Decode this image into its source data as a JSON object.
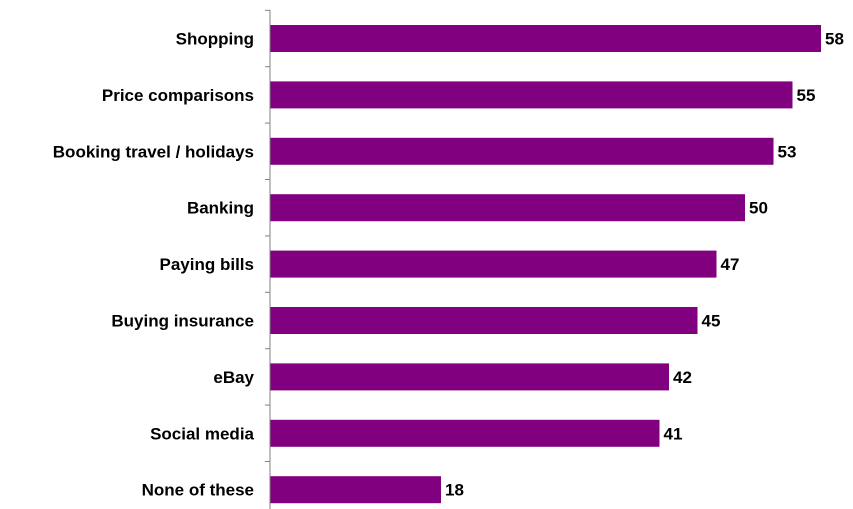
{
  "chart_data": {
    "type": "bar",
    "orientation": "horizontal",
    "title": "",
    "xlabel": "",
    "ylabel": "",
    "categories": [
      "Shopping",
      "Price comparisons",
      "Booking travel / holidays",
      "Banking",
      "Paying bills",
      "Buying insurance",
      "eBay",
      "Social media",
      "None of these"
    ],
    "values": [
      58,
      55,
      53,
      50,
      47,
      45,
      42,
      41,
      18
    ],
    "xlim": [
      0,
      60
    ],
    "grid": false,
    "legend": "none",
    "data_labels": true,
    "bar_color": "#800080"
  }
}
